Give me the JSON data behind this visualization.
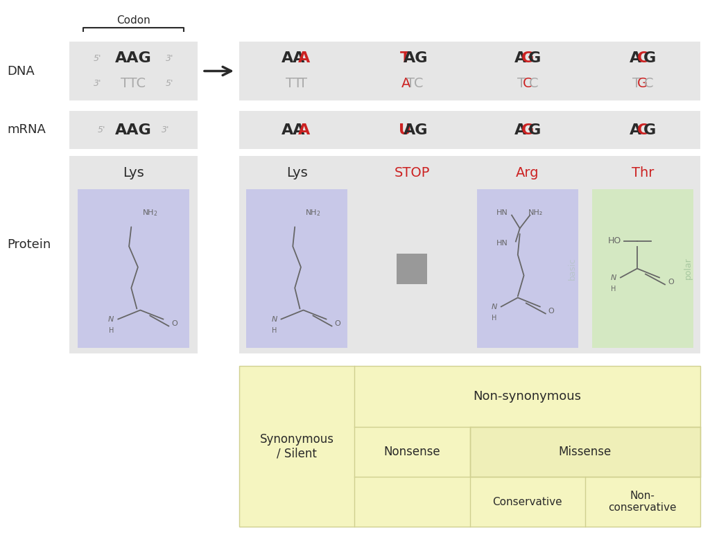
{
  "bg_color": "#ffffff",
  "light_gray": "#e6e6e6",
  "light_green": "#d4e8c2",
  "light_purple": "#c8c8e8",
  "light_yellow": "#f5f5c0",
  "dark_text": "#2a2a2a",
  "gray_text": "#aaaaaa",
  "red_text": "#cc2222",
  "basic_text": "#b8c4cc",
  "polar_text": "#a8c8a0",
  "codon_label": "Codon",
  "original_dna_top": "AAG",
  "original_dna_bottom": "TTC",
  "original_mrna": "AAG",
  "original_protein": "Lys",
  "mutant_cols": [
    {
      "dna_top_parts": [
        [
          "AA",
          "#2a2a2a"
        ],
        [
          "A",
          "#cc2222"
        ]
      ],
      "dna_bottom_parts": [
        [
          "TT",
          "#aaaaaa"
        ],
        [
          "T",
          "#aaaaaa"
        ]
      ],
      "mrna_parts": [
        [
          "AA",
          "#2a2a2a"
        ],
        [
          "A",
          "#cc2222"
        ]
      ],
      "protein": "Lys",
      "protein_color": "#2a2a2a",
      "type": "synonymous"
    },
    {
      "dna_top_parts": [
        [
          "T",
          "#cc2222"
        ],
        [
          "AG",
          "#2a2a2a"
        ]
      ],
      "dna_bottom_parts": [
        [
          "A",
          "#cc2222"
        ],
        [
          "TC",
          "#aaaaaa"
        ]
      ],
      "mrna_parts": [
        [
          "U",
          "#cc2222"
        ],
        [
          "AG",
          "#2a2a2a"
        ]
      ],
      "protein": "STOP",
      "protein_color": "#cc2222",
      "type": "nonsense"
    },
    {
      "dna_top_parts": [
        [
          "A",
          "#2a2a2a"
        ],
        [
          "G",
          "#cc2222"
        ],
        [
          "G",
          "#2a2a2a"
        ]
      ],
      "dna_bottom_parts": [
        [
          "T",
          "#aaaaaa"
        ],
        [
          "C",
          "#cc2222"
        ],
        [
          "C",
          "#aaaaaa"
        ]
      ],
      "mrna_parts": [
        [
          "A",
          "#2a2a2a"
        ],
        [
          "G",
          "#cc2222"
        ],
        [
          "G",
          "#2a2a2a"
        ]
      ],
      "protein": "Arg",
      "protein_color": "#cc2222",
      "type": "conservative"
    },
    {
      "dna_top_parts": [
        [
          "A",
          "#2a2a2a"
        ],
        [
          "C",
          "#cc2222"
        ],
        [
          "G",
          "#2a2a2a"
        ]
      ],
      "dna_bottom_parts": [
        [
          "T",
          "#aaaaaa"
        ],
        [
          "G",
          "#cc2222"
        ],
        [
          "C",
          "#aaaaaa"
        ]
      ],
      "mrna_parts": [
        [
          "A",
          "#2a2a2a"
        ],
        [
          "C",
          "#cc2222"
        ],
        [
          "G",
          "#2a2a2a"
        ]
      ],
      "protein": "Thr",
      "protein_color": "#cc2222",
      "type": "nonconservative"
    }
  ],
  "taxonomy_labels": {
    "synonymous": "Synonymous\n/ Silent",
    "non_synonymous": "Non-synonymous",
    "nonsense": "Nonsense",
    "missense": "Missense",
    "conservative": "Conservative",
    "non_conservative": "Non-\nconservative"
  }
}
